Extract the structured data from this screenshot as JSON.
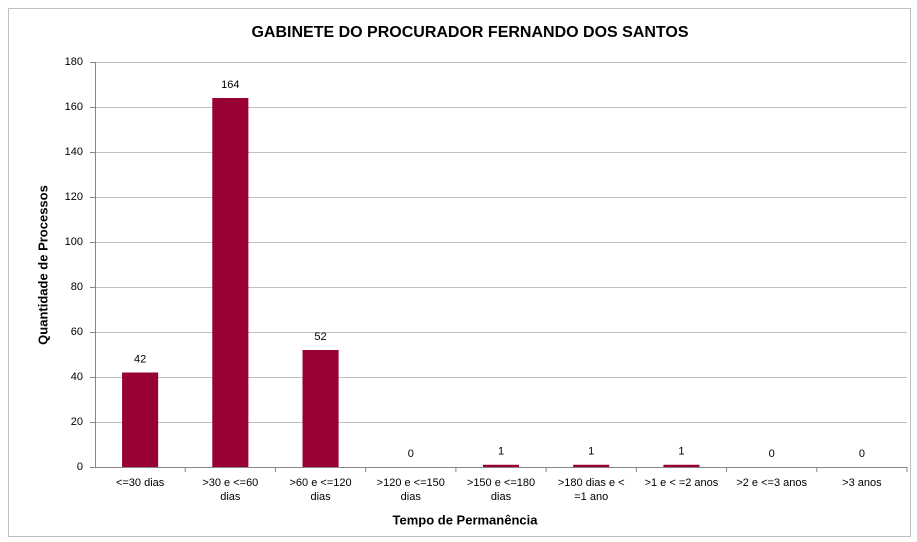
{
  "chart_data": {
    "type": "bar",
    "title": "GABINETE DO PROCURADOR FERNANDO DOS SANTOS",
    "x_label": "Tempo de Permanência",
    "y_label": "Quantidade de Processos",
    "categories": [
      "<=30 dias",
      ">30 e <=60 dias",
      ">60 e <=120 dias",
      ">120 e <=150 dias",
      ">150 e <=180 dias",
      ">180 dias e < =1 ano",
      ">1 e < =2 anos",
      ">2 e <=3 anos",
      ">3 anos"
    ],
    "values": [
      42,
      164,
      52,
      0,
      1,
      1,
      1,
      0,
      0
    ],
    "color": "#990033",
    "ylim": [
      0,
      180
    ],
    "yticks": [
      0,
      20,
      40,
      60,
      80,
      100,
      120,
      140,
      160,
      180
    ],
    "grid": true
  }
}
